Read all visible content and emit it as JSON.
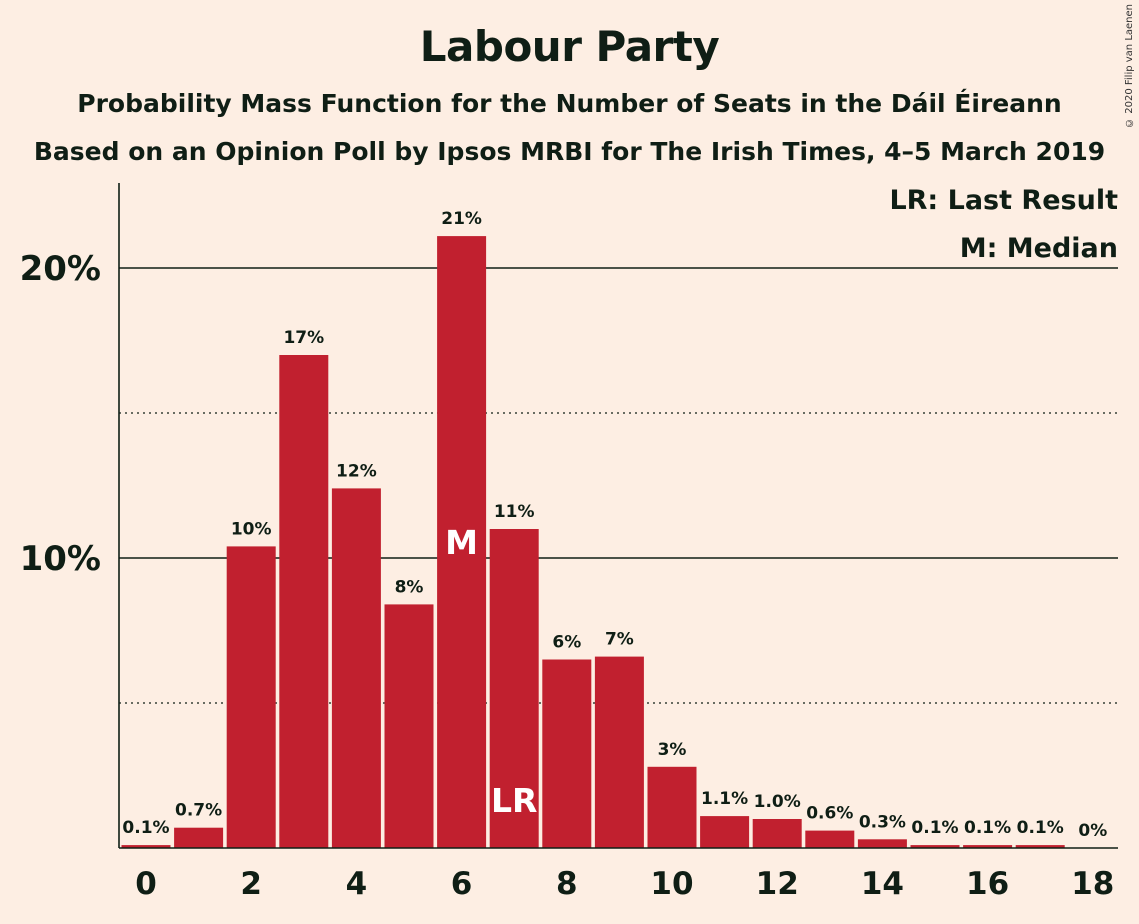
{
  "title": "Labour Party",
  "subtitle": "Probability Mass Function for the Number of Seats in the Dáil Éireann",
  "subtitle2": "Based on an Opinion Poll by Ipsos MRBI for The Irish Times, 4–5 March 2019",
  "copyright": "© 2020 Filip van Laenen",
  "colors": {
    "background": "#fdeee3",
    "bar": "#c1202f",
    "text": "#0f1e15"
  },
  "chart_data": {
    "type": "bar",
    "x": [
      0,
      1,
      2,
      3,
      4,
      5,
      6,
      7,
      8,
      9,
      10,
      11,
      12,
      13,
      14,
      15,
      16,
      17,
      18
    ],
    "values": [
      0.1,
      0.7,
      10.4,
      17.0,
      12.4,
      8.4,
      21.1,
      11.0,
      6.5,
      6.6,
      2.8,
      1.1,
      1.0,
      0.6,
      0.3,
      0.1,
      0.1,
      0.1,
      0
    ],
    "data_labels": [
      "0.1%",
      "0.7%",
      "10%",
      "17%",
      "12%",
      "8%",
      "21%",
      "11%",
      "6%",
      "7%",
      "3%",
      "1.1%",
      "1.0%",
      "0.6%",
      "0.3%",
      "0.1%",
      "0.1%",
      "0.1%",
      "0%"
    ],
    "x_tick_labels": [
      "0",
      "2",
      "4",
      "6",
      "8",
      "10",
      "12",
      "14",
      "16",
      "18"
    ],
    "y_tick_labels": [
      "10%",
      "20%"
    ],
    "ylim": [
      0,
      23
    ],
    "median": 6,
    "median_label": "M",
    "last_result": 7,
    "last_result_label": "LR",
    "legend": [
      "LR: Last Result",
      "M: Median"
    ],
    "legend_position": "top-right",
    "grid": {
      "major_y": [
        10,
        20
      ],
      "minor_y": [
        5,
        15
      ]
    }
  }
}
